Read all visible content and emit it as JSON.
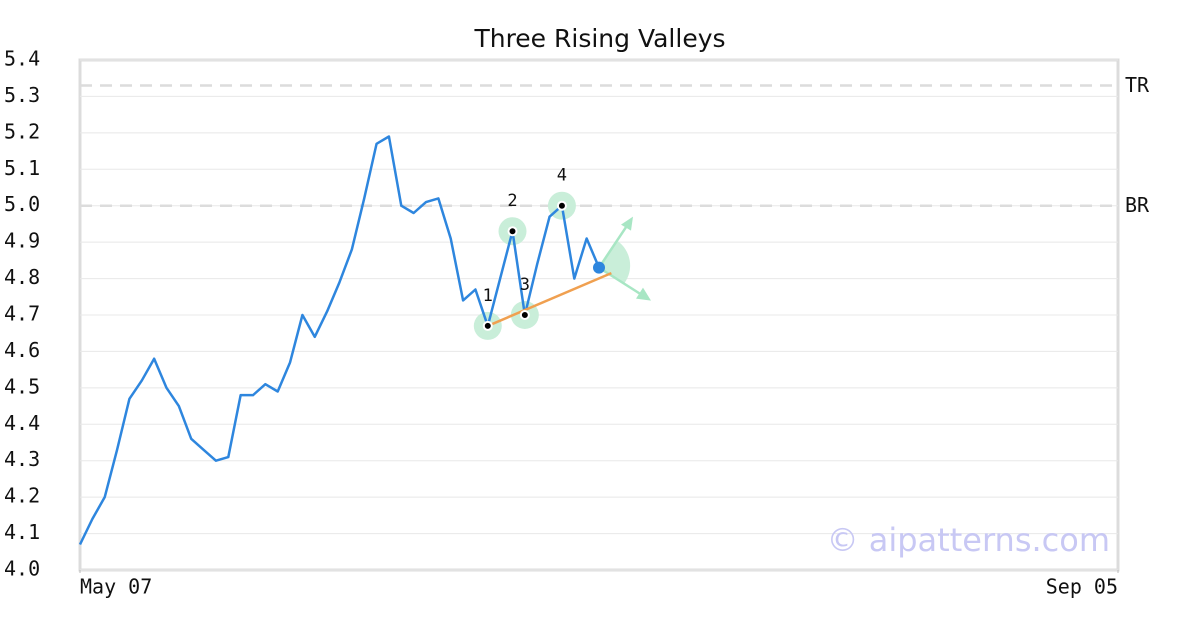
{
  "chart_data": {
    "type": "line",
    "title": "Three Rising Valleys",
    "x": [
      0,
      1,
      2,
      3,
      4,
      5,
      6,
      7,
      8,
      9,
      10,
      11,
      12,
      13,
      14,
      15,
      16,
      17,
      18,
      19,
      20,
      21,
      22,
      23,
      24,
      25,
      26,
      27,
      28,
      29,
      30,
      31,
      32,
      33,
      34,
      35,
      36,
      37,
      38,
      39,
      40,
      41,
      42
    ],
    "series": [
      {
        "color": "#2e86de",
        "values": [
          4.07,
          4.14,
          4.2,
          4.33,
          4.47,
          4.52,
          4.58,
          4.5,
          4.45,
          4.36,
          4.33,
          4.3,
          4.31,
          4.48,
          4.48,
          4.51,
          4.49,
          4.57,
          4.7,
          4.64,
          4.71,
          4.79,
          4.88,
          5.02,
          5.17,
          5.19,
          5.0,
          4.98,
          5.01,
          5.02,
          4.91,
          4.74,
          4.77,
          4.67,
          4.8,
          4.93,
          4.7,
          4.84,
          4.97,
          5.0,
          4.8,
          4.91,
          4.83
        ]
      }
    ],
    "xlim": [
      0,
      84
    ],
    "xticks": [
      {
        "value": 0,
        "label": "May 07"
      },
      {
        "value": 84,
        "label": "Sep 05"
      }
    ],
    "ylim": [
      4.0,
      5.4
    ],
    "yticks": [
      {
        "value": 4.0,
        "label": "4.0"
      },
      4.1,
      4.2,
      4.3,
      4.4,
      4.5,
      4.6,
      4.7,
      4.8,
      4.9,
      {
        "value": 5.0,
        "label": "5.0"
      },
      5.1,
      5.2,
      5.3,
      5.4
    ],
    "grid": true,
    "levels": [
      {
        "label": "TR",
        "value": 5.33
      },
      {
        "label": "BR",
        "value": 5.0
      }
    ],
    "pattern_points": [
      {
        "label": "1",
        "x": 33,
        "y": 4.67
      },
      {
        "label": "2",
        "x": 35,
        "y": 4.93
      },
      {
        "label": "3",
        "x": 36,
        "y": 4.7
      },
      {
        "label": "4",
        "x": 39,
        "y": 5.0
      }
    ],
    "trendline": {
      "color": "#f0a050",
      "x": [
        33,
        43
      ],
      "y": [
        4.67,
        4.815
      ]
    },
    "watermark": "© aipatterns.com"
  }
}
